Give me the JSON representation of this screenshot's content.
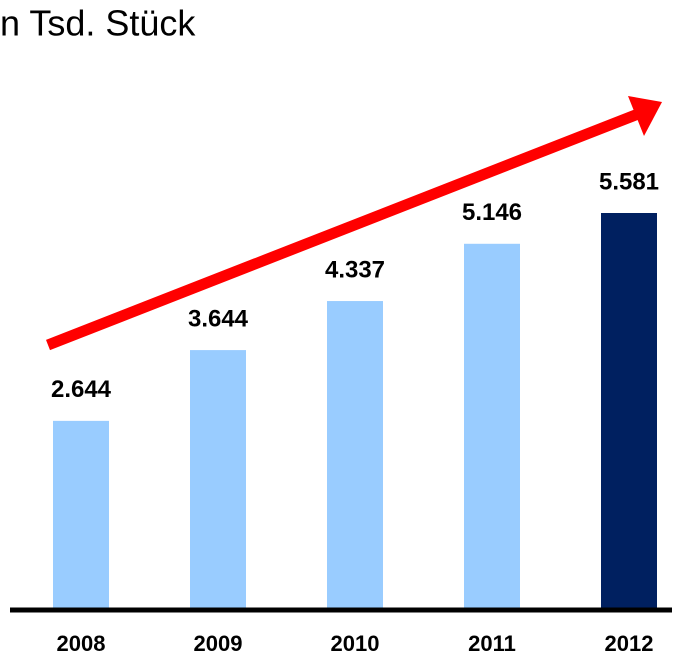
{
  "chart_data": {
    "type": "bar",
    "title": "n Tsd. Stück",
    "categories": [
      "2008",
      "2009",
      "2010",
      "2011",
      "2012"
    ],
    "values": [
      2644,
      3644,
      4337,
      5146,
      5581
    ],
    "value_labels": [
      "2.644",
      "3.644",
      "4.337",
      "5.146",
      "5.581"
    ],
    "colors": [
      "#99ccff",
      "#99ccff",
      "#99ccff",
      "#99ccff",
      "#002060"
    ]
  }
}
